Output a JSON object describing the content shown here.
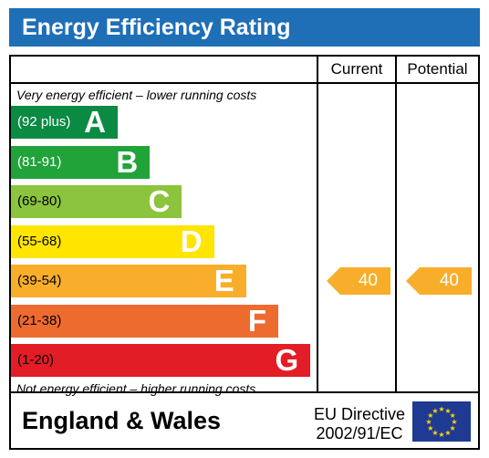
{
  "title": "Energy Efficiency Rating",
  "columns": {
    "current": "Current",
    "potential": "Potential"
  },
  "notes": {
    "top": "Very energy efficient – lower running costs",
    "bottom": "Not energy efficient – higher running costs"
  },
  "footer": {
    "country": "England & Wales",
    "directive_line1": "EU Directive",
    "directive_line2": "2002/91/EC"
  },
  "chart_data": {
    "type": "bar",
    "title": "Energy Efficiency Rating",
    "bands": [
      {
        "letter": "A",
        "range": "(92 plus)",
        "color": "#0b8a44",
        "range_color": "#ffffff"
      },
      {
        "letter": "B",
        "range": "(81-91)",
        "color": "#21a33a",
        "range_color": "#ffffff"
      },
      {
        "letter": "C",
        "range": "(69-80)",
        "color": "#8cc43d",
        "range_color": "#000000"
      },
      {
        "letter": "D",
        "range": "(55-68)",
        "color": "#ffe500",
        "range_color": "#000000"
      },
      {
        "letter": "E",
        "range": "(39-54)",
        "color": "#f8ae2a",
        "range_color": "#000000"
      },
      {
        "letter": "F",
        "range": "(21-38)",
        "color": "#ee6b2f",
        "range_color": "#000000"
      },
      {
        "letter": "G",
        "range": "(1-20)",
        "color": "#e31d25",
        "range_color": "#000000"
      }
    ],
    "current": {
      "value": 40,
      "band": "E",
      "color": "#f8ae2a"
    },
    "potential": {
      "value": 40,
      "band": "E",
      "color": "#f8ae2a"
    }
  }
}
